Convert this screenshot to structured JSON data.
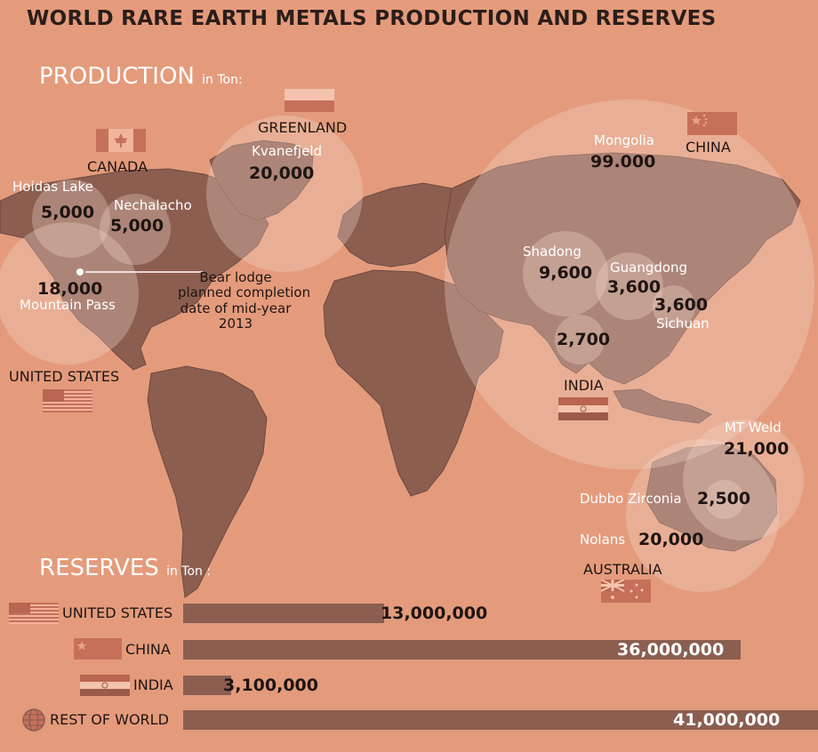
{
  "title": "WORLD RARE EARTH METALS PRODUCTION AND RESERVES",
  "production_heading": "PRODUCTION",
  "production_unit": "in Ton:",
  "reserves_heading": "RESERVES",
  "reserves_unit": "in Ton :",
  "countries": {
    "greenland": "GREENLAND",
    "canada": "CANADA",
    "united_states": "UNITED STATES",
    "china": "CHINA",
    "india": "INDIA",
    "australia": "AUSTRALIA"
  },
  "annotation": {
    "line1": "Bear lodge",
    "line2": "planned completion",
    "line3": "date of mid-year",
    "line4": "2013"
  },
  "colors": {
    "background": "#e49b7c",
    "land": "#8b5e50",
    "bar": "#8b5e50",
    "bubble": "#f6d9cc",
    "text_dark": "#1f1512"
  },
  "chart_data": [
    {
      "type": "bubble-map",
      "title": "PRODUCTION",
      "unit": "Ton",
      "sites": [
        {
          "name": "Kvanefjeld",
          "country": "GREENLAND",
          "value": 20000,
          "label": "20,000"
        },
        {
          "name": "Hoidas Lake",
          "country": "CANADA",
          "value": 5000,
          "label": "5,000"
        },
        {
          "name": "Nechalacho",
          "country": "CANADA",
          "value": 5000,
          "label": "5,000"
        },
        {
          "name": "Mountain Pass",
          "country": "UNITED STATES",
          "value": 18000,
          "label": "18,000"
        },
        {
          "name": "Mongolia",
          "country": "CHINA",
          "value": 99000,
          "label": "99.000"
        },
        {
          "name": "Shadong",
          "country": "CHINA",
          "value": 9600,
          "label": "9,600"
        },
        {
          "name": "Guangdong",
          "country": "CHINA",
          "value": 3600,
          "label": "3,600"
        },
        {
          "name": "Sichuan",
          "country": "CHINA",
          "value": 3600,
          "label": "3,600"
        },
        {
          "name": "",
          "country": "INDIA",
          "value": 2700,
          "label": "2,700"
        },
        {
          "name": "MT Weld",
          "country": "AUSTRALIA",
          "value": 21000,
          "label": "21,000"
        },
        {
          "name": "Dubbo Zirconia",
          "country": "AUSTRALIA",
          "value": 2500,
          "label": "2,500"
        },
        {
          "name": "Nolans",
          "country": "AUSTRALIA",
          "value": 20000,
          "label": "20,000"
        }
      ]
    },
    {
      "type": "bar",
      "orientation": "horizontal",
      "title": "RESERVES",
      "unit": "Ton",
      "categories": [
        "UNITED STATES",
        "CHINA",
        "INDIA",
        "REST OF WORLD"
      ],
      "values": [
        13000000,
        36000000,
        3100000,
        41000000
      ],
      "labels": [
        "13,000,000",
        "36,000,000",
        "3,100,000",
        "41,000,000"
      ]
    }
  ]
}
